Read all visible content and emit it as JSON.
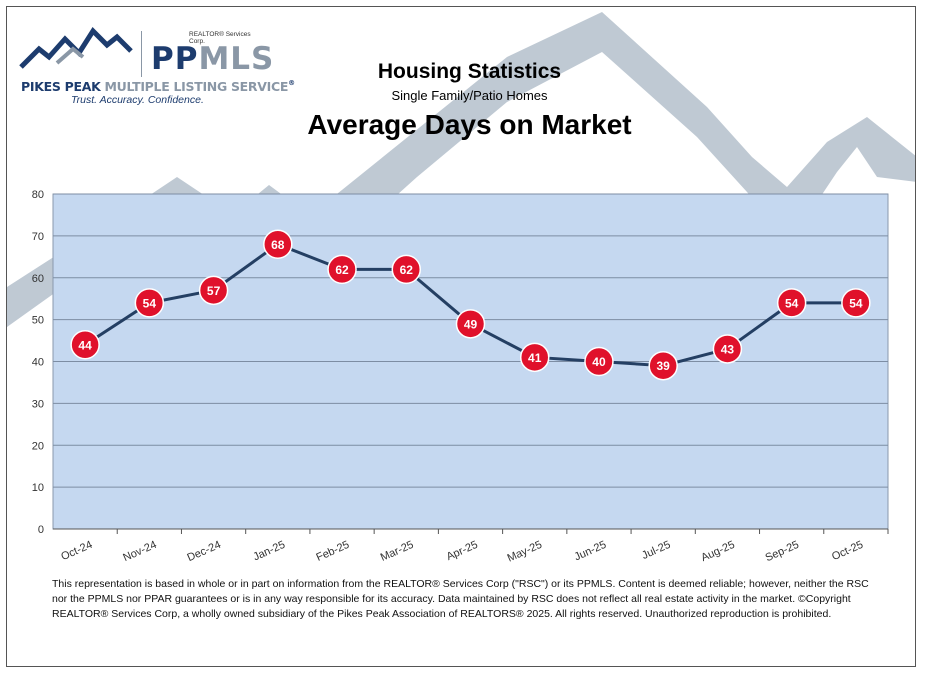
{
  "logo": {
    "corp": "REALTOR® Services Corp.",
    "brand_pp": "PP",
    "brand_mls": "MLS",
    "name_bold": "PIKES PEAK",
    "name_rest": "MULTIPLE LISTING SERVICE",
    "tm": "®",
    "tagline": "Trust. Accuracy. Confidence."
  },
  "header": {
    "title": "Housing Statistics",
    "subtitle": "Single Family/Patio Homes",
    "metric": "Average Days on Market"
  },
  "colors": {
    "plot_bg": "#c5d8f0",
    "line": "#243f63",
    "marker": "#e0112b",
    "grid": "#7d8da3",
    "watermark": "#bfc9d3"
  },
  "chart_data": {
    "type": "line",
    "categories": [
      "Oct-24",
      "Nov-24",
      "Dec-24",
      "Jan-25",
      "Feb-25",
      "Mar-25",
      "Apr-25",
      "May-25",
      "Jun-25",
      "Jul-25",
      "Aug-25",
      "Sep-25",
      "Oct-25"
    ],
    "series": [
      {
        "name": "Average Days on Market",
        "values": [
          44,
          54,
          57,
          68,
          62,
          62,
          49,
          41,
          40,
          39,
          43,
          54,
          54
        ]
      }
    ],
    "ylim": [
      0,
      80
    ],
    "yticks": [
      0,
      10,
      20,
      30,
      40,
      50,
      60,
      70,
      80
    ],
    "title": "Average Days on Market",
    "xlabel": "",
    "ylabel": "",
    "grid": true
  },
  "footnote": "This representation is based in whole or in part on information from the REALTOR® Services Corp (\"RSC\") or its PPMLS. Content is deemed reliable; however, neither the RSC nor the PPMLS nor PPAR guarantees or is in any way responsible for its accuracy. Data maintained by RSC does not reflect all real estate activity in the market. ©Copyright REALTOR® Services Corp, a wholly owned subsidiary of the Pikes Peak Association of REALTORS® 2025. All rights reserved. Unauthorized reproduction is prohibited."
}
